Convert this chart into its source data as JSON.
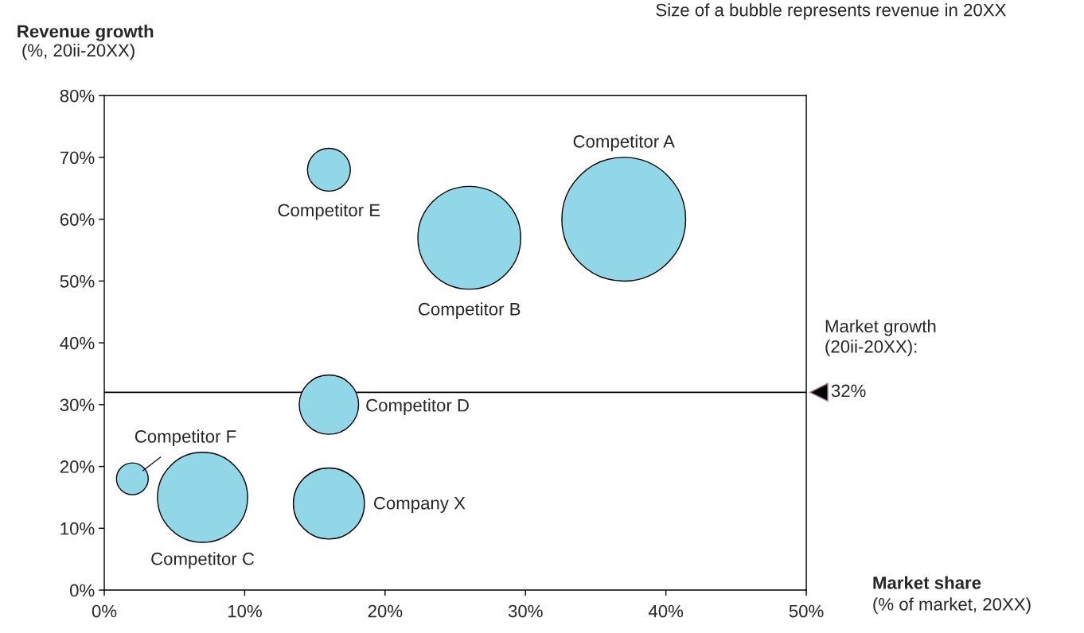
{
  "chart_data": {
    "type": "bubble",
    "xlabel": "Market share",
    "ylabel": "Revenue growth",
    "annotations": [
      "(%, 20ii-20XX)",
      "(% of market, 20XX)",
      "Size of a bubble represents revenue in 20XX",
      "Market growth\n(20ii-20XX):"
    ],
    "series": [
      {
        "name": "Competitor A",
        "color": "#92d7e7",
        "x": [
          37
        ],
        "values": [
          60
        ],
        "sizes": [
          1
        ]
      },
      {
        "name": "Competitor B",
        "color": "#92d7e7",
        "x": [
          26
        ],
        "values": [
          57
        ],
        "sizes": [
          0.69
        ]
      },
      {
        "name": "Competitor E",
        "color": "#92d7e7",
        "x": [
          16
        ],
        "values": [
          68
        ],
        "sizes": [
          0.12
        ]
      },
      {
        "name": "Competitor D",
        "color": "#92d7e7",
        "x": [
          16
        ],
        "values": [
          30
        ],
        "sizes": [
          0.23
        ]
      },
      {
        "name": "Competitor F",
        "color": "#92d7e7",
        "x": [
          2
        ],
        "values": [
          18
        ],
        "sizes": [
          0.066
        ]
      },
      {
        "name": "Competitor C",
        "color": "#92d7e7",
        "x": [
          7
        ],
        "values": [
          15
        ],
        "sizes": [
          0.53
        ]
      },
      {
        "name": "Company X",
        "color": "#92d7e7",
        "x": [
          16
        ],
        "values": [
          14
        ],
        "sizes": [
          0.33
        ]
      }
    ],
    "xlim": [
      0,
      50
    ],
    "ylim": [
      0,
      80
    ],
    "xticks": [
      {
        "value": 0,
        "label": "0%"
      },
      {
        "value": 10,
        "label": "10%"
      },
      {
        "value": 20,
        "label": "20%"
      },
      {
        "value": 30,
        "label": "30%"
      },
      {
        "value": 40,
        "label": "40%"
      },
      {
        "value": 50,
        "label": "50%"
      }
    ],
    "yticks": [
      {
        "value": 0,
        "label": "0%"
      },
      {
        "value": 10,
        "label": "10%"
      },
      {
        "value": 20,
        "label": "20%"
      },
      {
        "value": 30,
        "label": "30%"
      },
      {
        "value": 40,
        "label": "40%"
      },
      {
        "value": 50,
        "label": "50%"
      },
      {
        "value": 60,
        "label": "60%"
      },
      {
        "value": 70,
        "label": "70%"
      },
      {
        "value": 80,
        "label": "80%"
      }
    ],
    "ref_lines": [
      {
        "axis": "y",
        "value": 32,
        "label": "32%",
        "color": "#000000"
      }
    ],
    "grid": false,
    "legend": false
  }
}
